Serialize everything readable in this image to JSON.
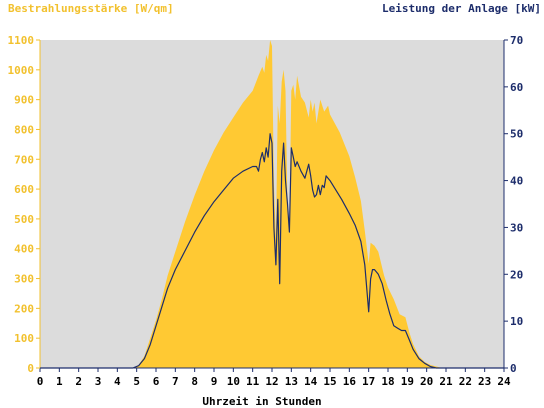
{
  "chart_data": {
    "type": "area",
    "ylabel_left": "Bestrahlungsstärke [W/qm]",
    "ylabel_right": "Leistung der Anlage [kW]",
    "xlabel": "Uhrzeit in Stunden",
    "xlim": [
      0,
      24
    ],
    "ylim_left": [
      0,
      1100
    ],
    "ylim_right": [
      0,
      70
    ],
    "x_ticks": [
      "0",
      "1",
      "2",
      "3",
      "4",
      "5",
      "6",
      "7",
      "8",
      "9",
      "10",
      "11",
      "12",
      "13",
      "14",
      "15",
      "16",
      "17",
      "18",
      "19",
      "20",
      "21",
      "22",
      "23",
      "24"
    ],
    "y_left_ticks": [
      "0",
      "100",
      "200",
      "300",
      "400",
      "500",
      "600",
      "700",
      "800",
      "900",
      "1000",
      "1100"
    ],
    "y_right_ticks": [
      "0",
      "10",
      "20",
      "30",
      "40",
      "50",
      "60",
      "70"
    ],
    "grid": false,
    "colors": {
      "irradiance_fill": "#ffc933",
      "power_line": "#1d2d6b",
      "plot_background": "#dcdcdc",
      "left_axis": "#f2c12e",
      "right_axis": "#1d2d6b"
    },
    "series": [
      {
        "name": "Bestrahlungsstärke [W/qm]",
        "axis": "left",
        "kind": "area",
        "x": [
          0,
          4.8,
          5.1,
          5.4,
          5.7,
          6.0,
          6.3,
          6.6,
          7.0,
          7.5,
          8.0,
          8.5,
          9.0,
          9.5,
          10.0,
          10.5,
          11.0,
          11.3,
          11.5,
          11.6,
          11.7,
          11.8,
          11.9,
          12.0,
          12.1,
          12.2,
          12.3,
          12.4,
          12.5,
          12.6,
          12.7,
          12.8,
          12.9,
          13.0,
          13.1,
          13.2,
          13.3,
          13.5,
          13.7,
          13.9,
          14.0,
          14.1,
          14.2,
          14.3,
          14.5,
          14.7,
          14.9,
          15.0,
          15.5,
          16.0,
          16.3,
          16.6,
          16.8,
          17.0,
          17.1,
          17.3,
          17.5,
          17.8,
          18.0,
          18.3,
          18.6,
          18.9,
          19.1,
          19.3,
          19.6,
          19.9,
          20.2,
          20.5,
          20.8,
          24
        ],
        "y": [
          0,
          0,
          10,
          40,
          100,
          160,
          230,
          310,
          390,
          490,
          580,
          660,
          730,
          790,
          840,
          890,
          930,
          980,
          1010,
          990,
          1050,
          1030,
          1100,
          1080,
          620,
          430,
          880,
          820,
          960,
          1000,
          930,
          540,
          470,
          930,
          950,
          900,
          980,
          910,
          890,
          840,
          900,
          860,
          890,
          820,
          900,
          860,
          880,
          850,
          790,
          710,
          640,
          560,
          460,
          350,
          420,
          410,
          390,
          310,
          270,
          230,
          180,
          170,
          120,
          80,
          40,
          20,
          10,
          5,
          0,
          0
        ]
      },
      {
        "name": "Leistung der Anlage [kW]",
        "axis": "right",
        "kind": "line",
        "x": [
          0,
          4.8,
          5.1,
          5.4,
          5.7,
          6.0,
          6.3,
          6.6,
          7.0,
          7.5,
          8.0,
          8.5,
          9.0,
          9.5,
          10.0,
          10.5,
          11.0,
          11.2,
          11.3,
          11.4,
          11.5,
          11.6,
          11.7,
          11.8,
          11.9,
          12.0,
          12.1,
          12.2,
          12.3,
          12.4,
          12.5,
          12.6,
          12.7,
          12.8,
          12.9,
          13.0,
          13.1,
          13.2,
          13.3,
          13.5,
          13.7,
          13.9,
          14.0,
          14.1,
          14.2,
          14.3,
          14.4,
          14.5,
          14.6,
          14.7,
          14.8,
          15.0,
          15.3,
          15.6,
          16.0,
          16.3,
          16.6,
          16.8,
          17.0,
          17.1,
          17.2,
          17.3,
          17.5,
          17.7,
          17.9,
          18.1,
          18.3,
          18.5,
          18.7,
          18.9,
          19.1,
          19.3,
          19.6,
          19.9,
          20.2,
          20.5,
          24
        ],
        "y": [
          0,
          0,
          0.5,
          2,
          5,
          9,
          13,
          17,
          21,
          25,
          29,
          32.5,
          35.5,
          38,
          40.5,
          42,
          43,
          43,
          42,
          44.5,
          46,
          44,
          47,
          45,
          50,
          48,
          30,
          22,
          36,
          18,
          42,
          48,
          40,
          35,
          29,
          47,
          45,
          43,
          44,
          42,
          40.5,
          43.5,
          41,
          38,
          36.5,
          37,
          39,
          37,
          39,
          38.5,
          41,
          40,
          38,
          36,
          33,
          30.5,
          27,
          22,
          12,
          19,
          21,
          21,
          20,
          18,
          14.5,
          11.5,
          9,
          8.5,
          8,
          8,
          6,
          4,
          2,
          1,
          0.3,
          0,
          0
        ]
      }
    ]
  }
}
